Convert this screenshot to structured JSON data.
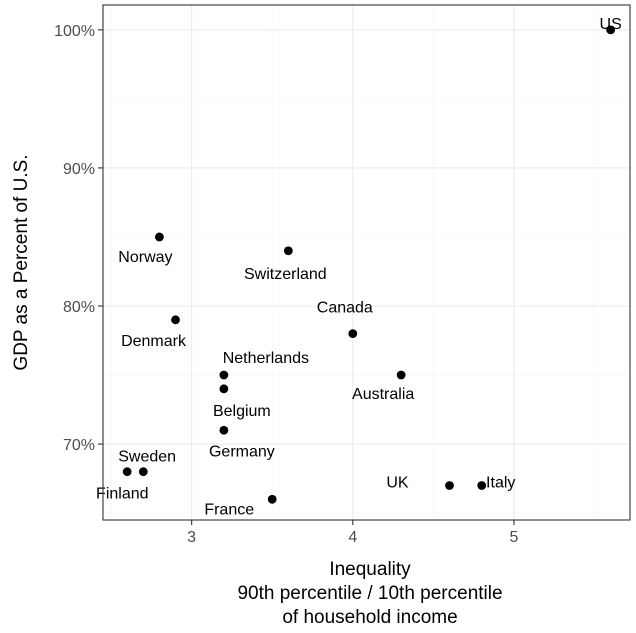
{
  "chart_data": {
    "type": "scatter",
    "title": "",
    "xlabel": [
      "Inequality",
      "90th percentile / 10th percentile",
      "of household income"
    ],
    "ylabel": "GDP as a Percent of U.S.",
    "xlim": [
      2.45,
      5.72
    ],
    "ylim": [
      0.645,
      1.018
    ],
    "x_ticks": [
      3,
      4,
      5
    ],
    "x_tick_labels": [
      "3",
      "4",
      "5"
    ],
    "y_ticks": [
      0.7,
      0.8,
      0.9,
      1.0
    ],
    "y_tick_labels": [
      "70%",
      "80%",
      "90%",
      "100%"
    ],
    "grid": true,
    "points": [
      {
        "label": "US",
        "x": 5.6,
        "y": 1.0
      },
      {
        "label": "Norway",
        "x": 2.8,
        "y": 0.85
      },
      {
        "label": "Switzerland",
        "x": 3.6,
        "y": 0.84
      },
      {
        "label": "Denmark",
        "x": 2.9,
        "y": 0.79
      },
      {
        "label": "Canada",
        "x": 4.0,
        "y": 0.78
      },
      {
        "label": "Netherlands",
        "x": 3.2,
        "y": 0.75
      },
      {
        "label": "Australia",
        "x": 4.3,
        "y": 0.75
      },
      {
        "label": "Belgium",
        "x": 3.2,
        "y": 0.74
      },
      {
        "label": "Germany",
        "x": 3.2,
        "y": 0.71
      },
      {
        "label": "Sweden",
        "x": 2.6,
        "y": 0.68
      },
      {
        "label": "Finland",
        "x": 2.7,
        "y": 0.68
      },
      {
        "label": "UK",
        "x": 4.6,
        "y": 0.67
      },
      {
        "label": "Italy",
        "x": 4.8,
        "y": 0.67
      },
      {
        "label": "France",
        "x": 3.5,
        "y": 0.66
      }
    ],
    "colors": {
      "point": "#000000",
      "panel": "#ffffff",
      "grid": "#ebebeb",
      "border": "#333333"
    }
  }
}
